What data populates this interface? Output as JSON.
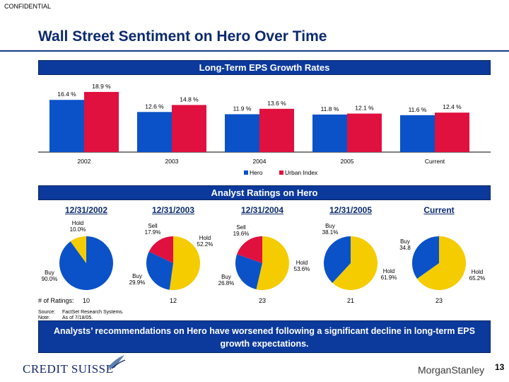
{
  "header": {
    "confidential": "CONFIDENTIAL",
    "title": "Wall Street Sentiment on Hero Over Time"
  },
  "eps_section": {
    "title": "Long-Term EPS Growth Rates"
  },
  "ratings_section": {
    "title": "Analyst Ratings on Hero"
  },
  "chart_data": [
    {
      "type": "bar",
      "title": "Long-Term EPS Growth Rates",
      "categories": [
        "2002",
        "2003",
        "2004",
        "2005",
        "Current"
      ],
      "series": [
        {
          "name": "Hero",
          "values": [
            16.4,
            12.6,
            11.9,
            11.8,
            11.6
          ],
          "labels": [
            "16.4 %",
            "12.6 %",
            "11.9 %",
            "11.8 %",
            "11.6 %"
          ],
          "color": "#0b52c8"
        },
        {
          "name": "Urban Index",
          "values": [
            18.9,
            14.8,
            13.6,
            12.1,
            12.4
          ],
          "labels": [
            "18.9 %",
            "14.8 %",
            "13.6 %",
            "12.1 %",
            "12.4 %"
          ],
          "color": "#e0103f"
        }
      ],
      "legend": "bottom"
    },
    {
      "type": "pie",
      "title": "Analyst Ratings on Hero",
      "pies": [
        {
          "date": "12/31/2002",
          "ratings": "10",
          "slices": [
            {
              "name": "Buy",
              "label": "Buy\n90.0%",
              "value": 90.0,
              "color": "#0b52c8"
            },
            {
              "name": "Hold",
              "label": "Hold\n10.0%",
              "value": 10.0,
              "color": "#f5cc00"
            }
          ]
        },
        {
          "date": "12/31/2003",
          "ratings": "12",
          "slices": [
            {
              "name": "Hold",
              "label": "Hold\n52.2%",
              "value": 52.2,
              "color": "#f5cc00"
            },
            {
              "name": "Buy",
              "label": "Buy\n29.9%",
              "value": 29.9,
              "color": "#0b52c8"
            },
            {
              "name": "Sell",
              "label": "Sell\n17.9%",
              "value": 17.9,
              "color": "#e0103f"
            }
          ]
        },
        {
          "date": "12/31/2004",
          "ratings": "23",
          "slices": [
            {
              "name": "Hold",
              "label": "Hold\n53.6%",
              "value": 53.6,
              "color": "#f5cc00"
            },
            {
              "name": "Buy",
              "label": "Buy\n26.8%",
              "value": 26.8,
              "color": "#0b52c8"
            },
            {
              "name": "Sell",
              "label": "Sell\n19.6%",
              "value": 19.6,
              "color": "#e0103f"
            }
          ]
        },
        {
          "date": "12/31/2005",
          "ratings": "21",
          "slices": [
            {
              "name": "Hold",
              "label": "Hold\n61.9%",
              "value": 61.9,
              "color": "#f5cc00"
            },
            {
              "name": "Buy",
              "label": "Buy\n38.1%",
              "value": 38.1,
              "color": "#0b52c8"
            }
          ]
        },
        {
          "date": "Current",
          "ratings": "23",
          "slices": [
            {
              "name": "Hold",
              "label": "Hold\n65.2%",
              "value": 65.2,
              "color": "#f5cc00"
            },
            {
              "name": "Buy",
              "label": "Buy\n34.8",
              "value": 34.8,
              "color": "#0b52c8"
            }
          ]
        }
      ]
    }
  ],
  "ratings_row_label": "# of Ratings:",
  "notes": {
    "source_label": "Source:",
    "source_text": "FactSet Research Systems.",
    "note_label": "Note:",
    "note_text": "As of 7/18/05."
  },
  "callout": "Analysts’ recommendations on Hero have worsened following a significant decline in long-term EPS growth expectations.",
  "footer": {
    "left_logo": "CREDIT SUISSE",
    "right_logo": "MorganStanley",
    "page_number": "13"
  }
}
